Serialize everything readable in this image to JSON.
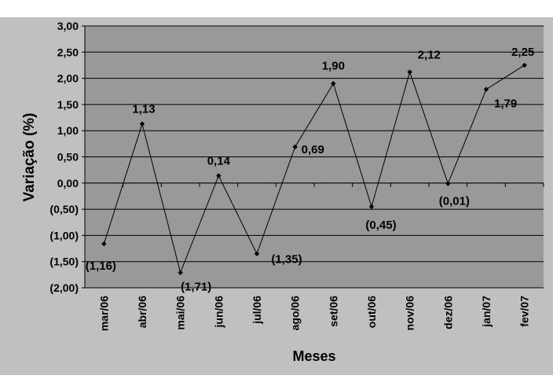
{
  "chart_data": {
    "type": "line",
    "title": "",
    "xlabel": "Meses",
    "ylabel": "Variação (%)",
    "categories": [
      "mar/06",
      "abr/06",
      "mai/06",
      "jun/06",
      "jul/06",
      "ago/06",
      "set/06",
      "out/06",
      "nov/06",
      "dez/06",
      "jan/07",
      "fev/07"
    ],
    "values": [
      -1.16,
      1.13,
      -1.71,
      0.14,
      -1.35,
      0.69,
      1.9,
      -0.45,
      2.12,
      -0.01,
      1.79,
      2.25
    ],
    "data_labels": [
      "(1,16)",
      "1,13",
      "(1,71)",
      "0,14",
      "(1,35)",
      "0,69",
      "1,90",
      "(0,45)",
      "2,12",
      "(0,01)",
      "1,79",
      "2,25"
    ],
    "ylim": [
      -2,
      3
    ],
    "y_ticks": [
      3,
      2.5,
      2,
      1.5,
      1,
      0.5,
      0,
      -0.5,
      -1,
      -1.5,
      -2
    ],
    "y_tick_labels": [
      "3,00",
      "2,50",
      "2,00",
      "1,50",
      "1,00",
      "0,50",
      "0,00",
      "(0,50)",
      "(1,00)",
      "(1,50)",
      "(2,00)"
    ],
    "grid": true,
    "legend": "none",
    "colors": {
      "outer_background": "#c0c0c0",
      "plot_background": "#999999",
      "line": "#000000",
      "gridline": "#000000"
    }
  }
}
